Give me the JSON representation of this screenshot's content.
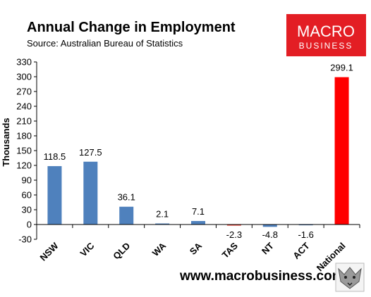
{
  "logo": {
    "line1": "MACRO",
    "line2": "BUSINESS",
    "color": "#e31e24"
  },
  "website": "www.macrobusiness.com.au",
  "chart_data": {
    "type": "bar",
    "title": "Annual Change in Employment",
    "subtitle": "Source: Australian Bureau of Statistics",
    "xlabel": "",
    "ylabel": "Thousands",
    "ylim": [
      -30,
      330
    ],
    "yticks": [
      -30,
      0,
      30,
      60,
      90,
      120,
      150,
      180,
      210,
      240,
      270,
      300,
      330
    ],
    "grid": false,
    "legend": "none",
    "categories": [
      "NSW",
      "VIC",
      "QLD",
      "WA",
      "SA",
      "TAS",
      "NT",
      "ACT",
      "National"
    ],
    "values": [
      118.5,
      127.5,
      36.1,
      2.1,
      7.1,
      -2.3,
      -4.8,
      -1.6,
      299.1
    ],
    "data_labels": [
      "118.5",
      "127.5",
      "36.1",
      "2.1",
      "7.1",
      "-2.3",
      "-4.8",
      "-1.6",
      "299.1"
    ],
    "colors": [
      "#4f81bd",
      "#4f81bd",
      "#4f81bd",
      "#4f81bd",
      "#4f81bd",
      "#e0443a",
      "#4f81bd",
      "#4f81bd",
      "#ff0000"
    ]
  }
}
